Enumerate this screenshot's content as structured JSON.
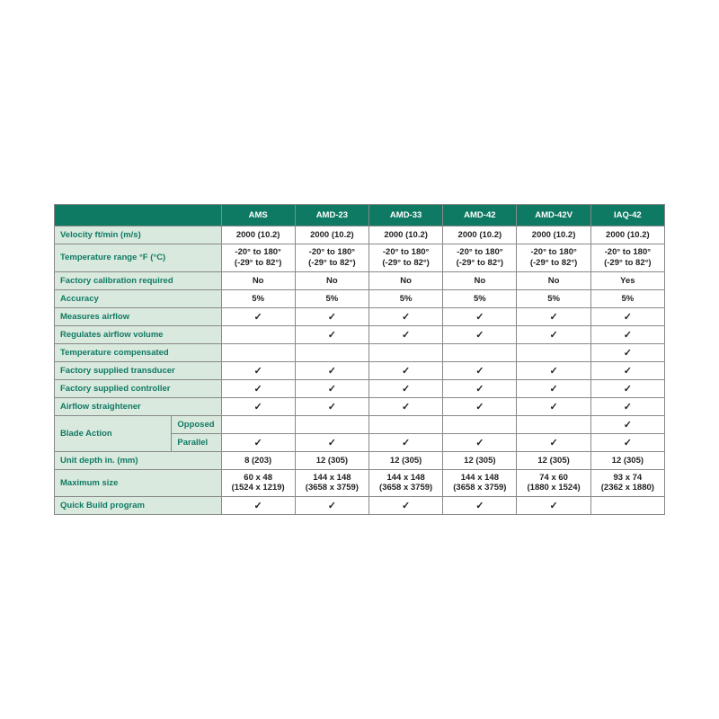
{
  "colors": {
    "header_bg": "#0f7a63",
    "header_text": "#ffffff",
    "label_bg": "#d9e9de",
    "label_text": "#0f7a63",
    "border": "#888888",
    "cell_text": "#222222"
  },
  "checkmark": "✓",
  "columns": [
    "AMS",
    "AMD-23",
    "AMD-33",
    "AMD-42",
    "AMD-42V",
    "IAQ-42"
  ],
  "rows": [
    {
      "label": "Velocity ft/min (m/s)",
      "vals": [
        "2000 (10.2)",
        "2000 (10.2)",
        "2000 (10.2)",
        "2000 (10.2)",
        "2000 (10.2)",
        "2000 (10.2)"
      ]
    },
    {
      "label": "Temperature range °F (°C)",
      "two": true,
      "vals": [
        "-20° to 180°\n(-29° to 82°)",
        "-20° to 180°\n(-29° to 82°)",
        "-20° to 180°\n(-29° to 82°)",
        "-20° to 180°\n(-29° to 82°)",
        "-20° to 180°\n(-29° to 82°)",
        "-20° to 180°\n(-29° to 82°)"
      ]
    },
    {
      "label": "Factory calibration required",
      "vals": [
        "No",
        "No",
        "No",
        "No",
        "No",
        "Yes"
      ]
    },
    {
      "label": "Accuracy",
      "vals": [
        "5%",
        "5%",
        "5%",
        "5%",
        "5%",
        "5%"
      ]
    },
    {
      "label": "Measures airflow",
      "vals": [
        "✓",
        "✓",
        "✓",
        "✓",
        "✓",
        "✓"
      ]
    },
    {
      "label": "Regulates airflow volume",
      "vals": [
        "",
        "✓",
        "✓",
        "✓",
        "✓",
        "✓"
      ]
    },
    {
      "label": "Temperature compensated",
      "vals": [
        "",
        "",
        "",
        "",
        "",
        "✓"
      ]
    },
    {
      "label": "Factory supplied transducer",
      "vals": [
        "✓",
        "✓",
        "✓",
        "✓",
        "✓",
        "✓"
      ]
    },
    {
      "label": "Factory supplied controller",
      "vals": [
        "✓",
        "✓",
        "✓",
        "✓",
        "✓",
        "✓"
      ]
    },
    {
      "label": "Airflow straightener",
      "vals": [
        "✓",
        "✓",
        "✓",
        "✓",
        "✓",
        "✓"
      ]
    }
  ],
  "bladeAction": {
    "group": "Blade Action",
    "sub": [
      {
        "label": "Opposed",
        "vals": [
          "",
          "",
          "",
          "",
          "",
          "✓"
        ]
      },
      {
        "label": "Parallel",
        "vals": [
          "✓",
          "✓",
          "✓",
          "✓",
          "✓",
          "✓"
        ]
      }
    ]
  },
  "rows2": [
    {
      "label": "Unit depth in. (mm)",
      "vals": [
        "8 (203)",
        "12 (305)",
        "12 (305)",
        "12 (305)",
        "12 (305)",
        "12 (305)"
      ]
    },
    {
      "label": "Maximum size",
      "two": true,
      "vals": [
        "60 x 48\n(1524 x 1219)",
        "144 x 148\n(3658 x 3759)",
        "144 x 148\n(3658 x 3759)",
        "144 x 148\n(3658 x 3759)",
        "74 x 60\n(1880 x 1524)",
        "93 x 74\n(2362 x 1880)"
      ]
    },
    {
      "label": "Quick Build program",
      "vals": [
        "✓",
        "✓",
        "✓",
        "✓",
        "✓",
        ""
      ]
    }
  ],
  "layout": {
    "label_col_width": 130,
    "sub_col_width": 55,
    "data_col_width": 82
  }
}
